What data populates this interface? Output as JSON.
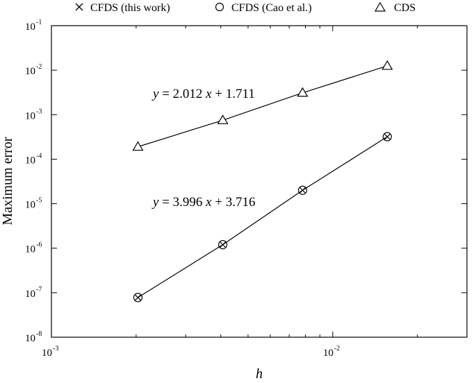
{
  "chart_data": {
    "type": "scatter",
    "title": "",
    "xlabel": "h",
    "ylabel": "Maximum error",
    "xscale": "log",
    "yscale": "log",
    "xlim": [
      0.001,
      0.03
    ],
    "ylim": [
      1e-08,
      0.1
    ],
    "grid": false,
    "legend_position": "top",
    "x_ticks": [
      {
        "value": 0.001,
        "base": "10",
        "exp": "-3"
      },
      {
        "value": 0.01,
        "base": "10",
        "exp": "-2"
      }
    ],
    "y_ticks": [
      {
        "value": 1e-08,
        "base": "10",
        "exp": "-8"
      },
      {
        "value": 1e-07,
        "base": "10",
        "exp": "-7"
      },
      {
        "value": 1e-06,
        "base": "10",
        "exp": "-6"
      },
      {
        "value": 1e-05,
        "base": "10",
        "exp": "-5"
      },
      {
        "value": 0.0001,
        "base": "10",
        "exp": "-4"
      },
      {
        "value": 0.001,
        "base": "10",
        "exp": "-3"
      },
      {
        "value": 0.01,
        "base": "10",
        "exp": "-2"
      },
      {
        "value": 0.1,
        "base": "10",
        "exp": "-1"
      }
    ],
    "x": [
      0.00203,
      0.004065,
      0.0078125,
      0.015625
    ],
    "series": [
      {
        "name": "CFDS (this work)",
        "marker": "x",
        "values": [
          7.8e-08,
          1.2e-06,
          2e-05,
          0.00032
        ]
      },
      {
        "name": "CFDS (Cao et al.)",
        "marker": "circle",
        "values": [
          7.8e-08,
          1.2e-06,
          2e-05,
          0.00032
        ]
      },
      {
        "name": "CDS",
        "marker": "triangle",
        "values": [
          0.00019,
          0.00075,
          0.0031,
          0.0125
        ]
      }
    ],
    "annotations": [
      {
        "y_var": "y",
        "eq": " = 2.012 ",
        "x_var": "x",
        "rest": " + 1.711"
      },
      {
        "y_var": "y",
        "eq": " = 3.996 ",
        "x_var": "x",
        "rest": " + 3.716"
      }
    ]
  }
}
